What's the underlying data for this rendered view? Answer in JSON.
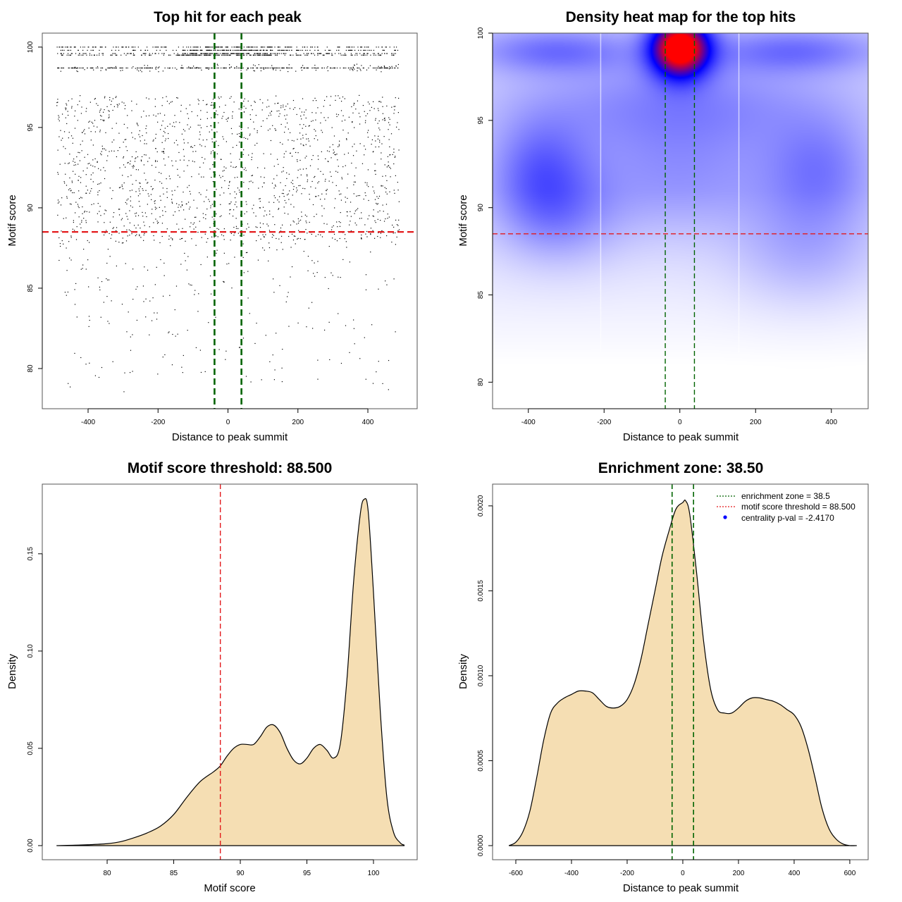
{
  "chart_data": [
    {
      "id": "scatter",
      "type": "scatter",
      "title": "Top hit for each peak",
      "xlabel": "Distance to peak summit",
      "ylabel": "Motif score",
      "xlim": [
        -531,
        541
      ],
      "ylim": [
        77.5,
        100.87
      ],
      "xticks": [
        -400,
        -200,
        0,
        200,
        400
      ],
      "xtick_labels": [
        "-400",
        "-200",
        "0",
        "200",
        "400"
      ],
      "yticks": [
        80,
        85,
        90,
        95,
        100
      ],
      "ytick_labels": [
        "80",
        "85",
        "90",
        "95",
        "100"
      ],
      "grid": false,
      "point_color": "#000000",
      "description": "Several thousand top-hit points spread over x in [-500, 500]; dense bands at scores ~99.5-100 and ~98.7; scattered points between ~78.5 and ~97; density of points thins below ~88",
      "point_bands": [
        {
          "y_range": [
            99.4,
            100.0
          ],
          "x_range": [
            -490,
            490
          ],
          "density": "very high",
          "dense_near_center": true
        },
        {
          "y_range": [
            98.6,
            98.8
          ],
          "x_range": [
            -490,
            490
          ],
          "density": "high"
        },
        {
          "y_range": [
            88.0,
            97.0
          ],
          "x_range": [
            -490,
            490
          ],
          "density": "medium"
        },
        {
          "y_range": [
            78.5,
            88.0
          ],
          "x_range": [
            -490,
            490
          ],
          "density": "low"
        }
      ],
      "reference_lines": [
        {
          "orientation": "vertical",
          "value": -38.5,
          "color": "#006400",
          "style": "dashed",
          "label": "enrichment zone"
        },
        {
          "orientation": "vertical",
          "value": 38.5,
          "color": "#006400",
          "style": "dashed",
          "label": "enrichment zone"
        },
        {
          "orientation": "horizontal",
          "value": 88.5,
          "color": "#e31a1c",
          "style": "dashed",
          "label": "motif score threshold"
        }
      ]
    },
    {
      "id": "heatmap",
      "type": "heatmap",
      "title": "Density heat map for the top hits",
      "xlabel": "Distance to peak summit",
      "ylabel": "Motif score",
      "xlim": [
        -494.4,
        497.2
      ],
      "ylim": [
        78.48,
        100
      ],
      "xticks": [
        -400,
        -200,
        0,
        200,
        400
      ],
      "xtick_labels": [
        "-400",
        "-200",
        "0",
        "200",
        "400"
      ],
      "yticks": [
        80,
        85,
        90,
        95,
        100
      ],
      "ytick_labels": [
        "80",
        "85",
        "90",
        "95",
        "100"
      ],
      "colorscale": [
        "#ffffff",
        "#0000ff",
        "#ff0000"
      ],
      "hotspots": [
        {
          "x": 0,
          "y": 99.2,
          "intensity": 1.0,
          "sx": 55,
          "sy": 1.2
        },
        {
          "x": -330,
          "y": 99.0,
          "intensity": 0.22,
          "sx": 150,
          "sy": 0.9
        },
        {
          "x": 300,
          "y": 99.0,
          "intensity": 0.22,
          "sx": 160,
          "sy": 0.9
        },
        {
          "x": -370,
          "y": 92.2,
          "intensity": 0.22,
          "sx": 90,
          "sy": 2.2
        },
        {
          "x": 370,
          "y": 92.2,
          "intensity": 0.18,
          "sx": 100,
          "sy": 2.2
        },
        {
          "x": 0,
          "y": 92.0,
          "intensity": 0.14,
          "sx": 200,
          "sy": 2.5
        },
        {
          "x": 330,
          "y": 87.5,
          "intensity": 0.12,
          "sx": 130,
          "sy": 2.2
        },
        {
          "x": -320,
          "y": 89.5,
          "intensity": 0.15,
          "sx": 110,
          "sy": 2.0
        },
        {
          "x": -150,
          "y": 96.0,
          "intensity": 0.1,
          "sx": 220,
          "sy": 1.8
        },
        {
          "x": 150,
          "y": 96.0,
          "intensity": 0.1,
          "sx": 220,
          "sy": 1.8
        }
      ],
      "white_vertical_lines": [
        -210,
        155
      ],
      "reference_lines": [
        {
          "orientation": "vertical",
          "value": -38.5,
          "color": "#006400",
          "style": "dashed"
        },
        {
          "orientation": "vertical",
          "value": 38.5,
          "color": "#006400",
          "style": "dashed"
        },
        {
          "orientation": "horizontal",
          "value": 88.5,
          "color": "#e31a1c",
          "style": "dashed"
        }
      ]
    },
    {
      "id": "score-density",
      "type": "area",
      "title": "Motif score threshold: 88.500",
      "xlabel": "Motif score",
      "ylabel": "Density",
      "xlim": [
        75.13,
        103.28
      ],
      "ylim": [
        -0.00725,
        0.1858
      ],
      "xticks": [
        80,
        85,
        90,
        95,
        100
      ],
      "xtick_labels": [
        "80",
        "85",
        "90",
        "95",
        "100"
      ],
      "yticks": [
        0,
        0.05,
        0.1,
        0.15
      ],
      "ytick_labels": [
        "0.00",
        "0.05",
        "0.10",
        "0.15"
      ],
      "fill_color": "#f5deb3",
      "line_color": "#000000",
      "x": [
        76.2,
        78,
        80,
        81,
        82,
        83,
        84,
        85,
        86,
        87,
        88,
        88.5,
        89,
        89.5,
        90,
        90.5,
        91,
        91.5,
        92,
        92.5,
        93,
        93.5,
        94,
        94.5,
        95,
        95.5,
        96,
        96.5,
        97,
        97.5,
        98,
        98.5,
        99,
        99.3,
        99.6,
        100,
        100.5,
        101,
        101.5,
        102,
        102.3
      ],
      "y": [
        0.0,
        0.0003,
        0.001,
        0.002,
        0.004,
        0.0065,
        0.01,
        0.016,
        0.025,
        0.033,
        0.038,
        0.041,
        0.046,
        0.05,
        0.052,
        0.052,
        0.052,
        0.056,
        0.061,
        0.062,
        0.058,
        0.05,
        0.044,
        0.042,
        0.045,
        0.05,
        0.052,
        0.049,
        0.045,
        0.052,
        0.085,
        0.135,
        0.17,
        0.178,
        0.172,
        0.13,
        0.07,
        0.025,
        0.007,
        0.0015,
        0.0003
      ],
      "reference_lines": [
        {
          "orientation": "vertical",
          "value": 88.5,
          "color": "#e31a1c",
          "style": "dashed"
        }
      ]
    },
    {
      "id": "distance-density",
      "type": "area",
      "title": "Enrichment zone: 38.50",
      "xlabel": "Distance to peak summit",
      "ylabel": "Density",
      "xlim": [
        -683.5,
        666
      ],
      "ylim": [
        -8.3e-05,
        0.002128
      ],
      "xticks": [
        -600,
        -400,
        -200,
        0,
        200,
        400,
        600
      ],
      "xtick_labels": [
        "-600",
        "-400",
        "-200",
        "0",
        "200",
        "400",
        "600"
      ],
      "yticks": [
        0,
        0.0005,
        0.001,
        0.0015,
        0.002
      ],
      "ytick_labels": [
        "0.0000",
        "0.0005",
        "0.0010",
        "0.0015",
        "0.0020"
      ],
      "fill_color": "#f5deb3",
      "line_color": "#000000",
      "x": [
        -625,
        -600,
        -575,
        -550,
        -525,
        -500,
        -475,
        -450,
        -425,
        -400,
        -375,
        -350,
        -325,
        -300,
        -275,
        -250,
        -225,
        -200,
        -175,
        -150,
        -125,
        -100,
        -75,
        -50,
        -25,
        0,
        10,
        25,
        50,
        75,
        100,
        125,
        150,
        175,
        200,
        225,
        250,
        275,
        300,
        325,
        350,
        375,
        400,
        425,
        450,
        475,
        500,
        525,
        550,
        575,
        600,
        625
      ],
      "y": [
        0.0,
        2e-05,
        8e-05,
        0.0002,
        0.0004,
        0.00062,
        0.00078,
        0.00084,
        0.00087,
        0.00089,
        0.00091,
        0.00091,
        0.0009,
        0.00086,
        0.00082,
        0.00081,
        0.00082,
        0.00086,
        0.00095,
        0.0011,
        0.0013,
        0.0015,
        0.0017,
        0.00185,
        0.00198,
        0.00202,
        0.00203,
        0.00195,
        0.0016,
        0.0012,
        0.00092,
        0.0008,
        0.00078,
        0.00078,
        0.00081,
        0.00085,
        0.00087,
        0.00087,
        0.00086,
        0.00085,
        0.00083,
        0.0008,
        0.00077,
        0.0007,
        0.00057,
        0.0004,
        0.00022,
        0.0001,
        4e-05,
        1e-05,
        0.0,
        0.0
      ],
      "reference_lines": [
        {
          "orientation": "vertical",
          "value": -38.5,
          "color": "#006400",
          "style": "dashed"
        },
        {
          "orientation": "vertical",
          "value": 38.5,
          "color": "#006400",
          "style": "dashed"
        }
      ],
      "legend": {
        "placement": "top-right",
        "entries": [
          {
            "label": "enrichment zone = 38.5",
            "symbol": "dotted-line",
            "color": "#006400"
          },
          {
            "label": "motif score threshold = 88.500",
            "symbol": "dotted-line",
            "color": "#e31a1c"
          },
          {
            "label": "centrality p-val = -2.4170",
            "symbol": "dot",
            "color": "#0000ff"
          }
        ]
      }
    }
  ]
}
